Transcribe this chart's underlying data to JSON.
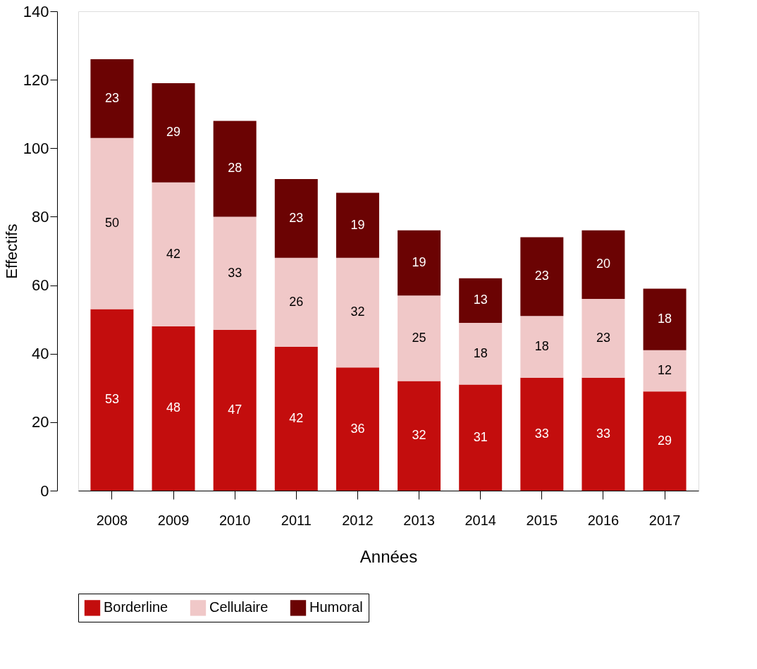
{
  "chart_data": {
    "type": "bar",
    "stacked": true,
    "xlabel": "Années",
    "ylabel": "Effectifs",
    "categories": [
      "2008",
      "2009",
      "2010",
      "2011",
      "2012",
      "2013",
      "2014",
      "2015",
      "2016",
      "2017"
    ],
    "series": [
      {
        "name": "Borderline",
        "color": "#c30d0d",
        "values": [
          53,
          48,
          47,
          42,
          36,
          32,
          31,
          33,
          33,
          29
        ]
      },
      {
        "name": "Cellulaire",
        "color": "#f0c8c8",
        "values": [
          50,
          42,
          33,
          26,
          32,
          25,
          18,
          18,
          23,
          12
        ]
      },
      {
        "name": "Humoral",
        "color": "#6b0303",
        "values": [
          23,
          29,
          28,
          23,
          19,
          19,
          13,
          23,
          20,
          18
        ]
      }
    ],
    "ylim": [
      0,
      140
    ],
    "yticks": [
      0,
      20,
      40,
      60,
      80,
      100,
      120,
      140
    ],
    "grid": false,
    "legend": "bottom",
    "data_labels": true
  }
}
